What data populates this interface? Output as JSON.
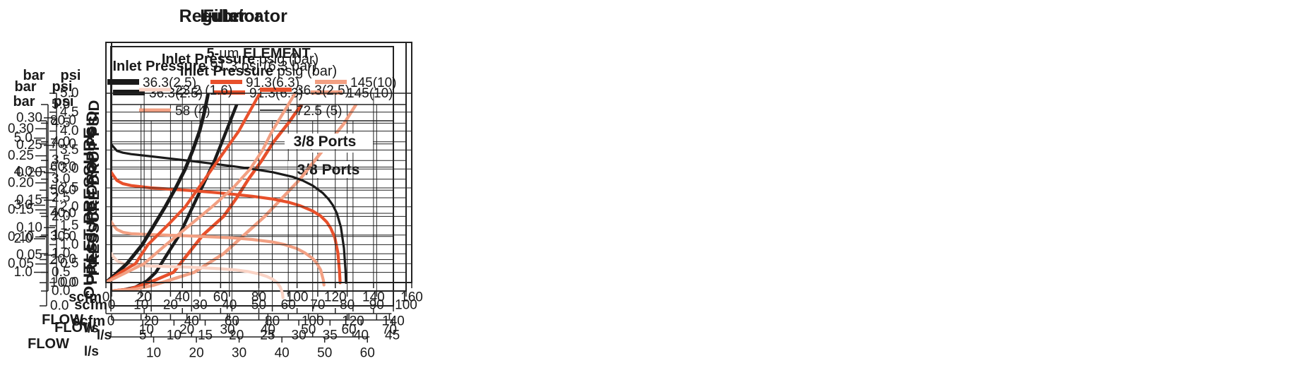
{
  "colors": {
    "black": "#1a1a1a",
    "orange": "#e8502b",
    "salmon": "#f2a083",
    "pink": "#fad3c5",
    "grid": "#222222",
    "background": "#ffffff"
  },
  "flow_axis": {
    "label": "FLOW",
    "primary_unit": "scfm",
    "secondary_unit": "l/s",
    "scfm_per_ls": 2.11888
  },
  "pressure_axis": {
    "psi_per_bar": 14.5
  },
  "chart_data": [
    {
      "type": "line",
      "title": "Filter",
      "ports_annotation": "3/8 Ports",
      "legend": {
        "title_lines": [
          {
            "segments": [
              {
                "t": "5-",
                "b": true
              },
              {
                "t": "µm",
                "b": false
              },
              {
                "t": " ELEMENT",
                "b": true
              }
            ]
          },
          {
            "segments": [
              {
                "t": "Inlet Pressure",
                "b": true
              },
              {
                "t": " psig (bar)",
                "b": false
              }
            ]
          }
        ],
        "entries": [
          {
            "label": "36.3(2.5)",
            "color": "black"
          },
          {
            "label": "91.3(6.3)",
            "color": "orange"
          },
          {
            "label": "145(10)",
            "color": "salmon"
          }
        ]
      },
      "y_axis": {
        "left_unit": "bar",
        "right_unit": "psi",
        "title": "PRESSURE DROP PSID",
        "psi_max": 5,
        "psi_step": 0.5,
        "psi_decimals": 1,
        "bar_ticks": [
          0.05,
          0.1,
          0.15,
          0.2,
          0.25,
          0.3
        ],
        "bar_decimals": 2
      },
      "x_axis": {
        "scfm_max": 100,
        "scfm_step": 10,
        "ls_ticks": [
          5,
          10,
          15,
          20,
          25,
          30,
          35,
          40,
          45
        ]
      },
      "series": [
        {
          "name": "36.3(2.5)",
          "color": "black",
          "points": [
            [
              0,
              0
            ],
            [
              4,
              0.03
            ],
            [
              8,
              0.1
            ],
            [
              12,
              0.27
            ],
            [
              15,
              0.5
            ],
            [
              19,
              1
            ],
            [
              23,
              1.5
            ],
            [
              26,
              2
            ],
            [
              29,
              2.5
            ],
            [
              32,
              3
            ],
            [
              35,
              3.5
            ],
            [
              37.5,
              4
            ],
            [
              40,
              4.5
            ],
            [
              42.5,
              5
            ]
          ]
        },
        {
          "name": "91.3(6.3)",
          "color": "orange",
          "points": [
            [
              0,
              0
            ],
            [
              6,
              0.05
            ],
            [
              10,
              0.15
            ],
            [
              15,
              0.3
            ],
            [
              21,
              0.5
            ],
            [
              26,
              1
            ],
            [
              31,
              1.5
            ],
            [
              38,
              2
            ],
            [
              42.5,
              2.5
            ],
            [
              46.5,
              3
            ],
            [
              51,
              3.5
            ],
            [
              55,
              4
            ],
            [
              60,
              4.5
            ],
            [
              64.5,
              5
            ]
          ]
        },
        {
          "name": "145(10)",
          "color": "salmon",
          "points": [
            [
              0,
              0
            ],
            [
              8,
              0.05
            ],
            [
              14,
              0.15
            ],
            [
              20,
              0.3
            ],
            [
              28,
              0.5
            ],
            [
              38,
              1
            ],
            [
              45,
              1.5
            ],
            [
              52,
              2
            ],
            [
              58,
              2.5
            ],
            [
              64,
              3
            ],
            [
              69,
              3.5
            ],
            [
              74,
              4
            ],
            [
              79,
              4.5
            ],
            [
              83,
              5
            ]
          ]
        }
      ]
    },
    {
      "type": "line",
      "title": "Regulator",
      "ports_annotation": "3/8 Ports",
      "legend": {
        "title_lines": [
          {
            "segments": [
              {
                "t": "Inlet Pressure",
                "b": true
              },
              {
                "t": " 91.3 psi (6.3 bar)",
                "b": false
              }
            ]
          }
        ],
        "entries": [
          {
            "label": "23.2 (1.6)",
            "color": "pink"
          },
          {
            "label": "36.3(2.5)",
            "color": "orange"
          },
          {
            "label": "58 (4)",
            "color": "salmon"
          },
          {
            "label": "72.5 (5)",
            "color": "black"
          }
        ]
      },
      "y_axis": {
        "left_unit": "bar",
        "right_unit": "psi",
        "title": "OUTLET PRESSURE",
        "psi_max": 80,
        "psi_step": 10,
        "psi_decimals": 1,
        "bar_ticks": [
          1.0,
          2.0,
          3.0,
          4.0,
          5.0
        ],
        "bar_decimals": 1
      },
      "x_axis": {
        "scfm_max": 140,
        "scfm_step": 20,
        "ls_ticks": [
          10,
          20,
          30,
          40,
          50,
          60
        ]
      },
      "series": [
        {
          "name": "72.5 (5)",
          "color": "black",
          "points": [
            [
              0,
              70
            ],
            [
              1.5,
              68.5
            ],
            [
              3,
              67
            ],
            [
              6,
              66.2
            ],
            [
              10,
              65.6
            ],
            [
              20,
              64.6
            ],
            [
              30,
              63.6
            ],
            [
              40,
              62.6
            ],
            [
              50,
              61.5
            ],
            [
              60,
              60.4
            ],
            [
              70,
              59.2
            ],
            [
              80,
              57.8
            ],
            [
              90,
              55.8
            ],
            [
              95,
              54.2
            ],
            [
              100,
              52
            ],
            [
              105,
              48.8
            ],
            [
              108,
              46
            ],
            [
              110,
              43.5
            ],
            [
              112,
              40
            ],
            [
              114,
              34
            ],
            [
              115.5,
              25
            ],
            [
              116.3,
              15
            ],
            [
              116.5,
              10
            ]
          ]
        },
        {
          "name": "58 (4)",
          "color": "orange",
          "points": [
            [
              0,
              58
            ],
            [
              1.5,
              56
            ],
            [
              3,
              54.2
            ],
            [
              6,
              52.8
            ],
            [
              10,
              52
            ],
            [
              20,
              51
            ],
            [
              30,
              50.4
            ],
            [
              40,
              49.8
            ],
            [
              50,
              49.1
            ],
            [
              60,
              48.3
            ],
            [
              70,
              47.4
            ],
            [
              80,
              46.2
            ],
            [
              88,
              44.8
            ],
            [
              94,
              43.2
            ],
            [
              100,
              41
            ],
            [
              104,
              38.8
            ],
            [
              107,
              36.2
            ],
            [
              109,
              33.5
            ],
            [
              111,
              29.5
            ],
            [
              112.5,
              23
            ],
            [
              113.3,
              15
            ],
            [
              113.6,
              10
            ]
          ]
        },
        {
          "name": "36.3(2.5)",
          "color": "salmon",
          "points": [
            [
              0,
              36.5
            ],
            [
              1.5,
              34.5
            ],
            [
              3,
              33
            ],
            [
              6,
              31.8
            ],
            [
              10,
              31.2
            ],
            [
              20,
              30.8
            ],
            [
              40,
              30.2
            ],
            [
              60,
              29.4
            ],
            [
              70,
              28.7
            ],
            [
              80,
              27.6
            ],
            [
              86,
              26.5
            ],
            [
              92,
              24.8
            ],
            [
              96,
              23
            ],
            [
              100,
              20.5
            ],
            [
              102,
              18.5
            ],
            [
              104,
              15.5
            ],
            [
              105.3,
              11
            ],
            [
              105.6,
              9
            ]
          ]
        },
        {
          "name": "23.2 (1.6)",
          "color": "pink",
          "points": [
            [
              0,
              22.8
            ],
            [
              1.5,
              21
            ],
            [
              3,
              19.5
            ],
            [
              6,
              18.2
            ],
            [
              10,
              17.6
            ],
            [
              20,
              17.2
            ],
            [
              40,
              16.7
            ],
            [
              55,
              16
            ],
            [
              62,
              15.5
            ],
            [
              68,
              14.8
            ],
            [
              73,
              13.9
            ],
            [
              77,
              12.8
            ],
            [
              80,
              11.6
            ],
            [
              82.5,
              10
            ],
            [
              84,
              8
            ],
            [
              85,
              5.5
            ],
            [
              85.3,
              3.5
            ]
          ]
        }
      ]
    },
    {
      "type": "line",
      "title": "Lubricator",
      "ports_annotation": "3/8 Ports",
      "legend": {
        "title_lines": [
          {
            "segments": [
              {
                "t": "Inlet Pressure",
                "b": true
              },
              {
                "t": " psig (bar)",
                "b": false
              }
            ]
          }
        ],
        "entries": [
          {
            "label": "36.3(2.5)",
            "color": "black"
          },
          {
            "label": "91.3(6.3)",
            "color": "orange"
          },
          {
            "label": "145(10)",
            "color": "salmon"
          }
        ]
      },
      "y_axis": {
        "left_unit": "bar",
        "right_unit": "psi",
        "title": "PRESSURE DROP PSID",
        "psi_max": 5,
        "psi_step": 0.5,
        "psi_decimals": 1,
        "bar_ticks": [
          0.05,
          0.1,
          0.15,
          0.2,
          0.25,
          0.3
        ],
        "bar_decimals": 2
      },
      "x_axis": {
        "scfm_max": 160,
        "scfm_step": 20,
        "ls_ticks": [
          10,
          20,
          30,
          40,
          50,
          60,
          70
        ]
      },
      "series": [
        {
          "name": "36.3(2.5)",
          "color": "black",
          "points": [
            [
              0,
              0
            ],
            [
              5,
              0.22
            ],
            [
              11,
              0.5
            ],
            [
              19,
              1
            ],
            [
              25,
              1.5
            ],
            [
              31,
              2
            ],
            [
              36.5,
              2.5
            ],
            [
              41.5,
              3
            ],
            [
              45.5,
              3.5
            ],
            [
              49,
              4
            ],
            [
              51.5,
              4.5
            ],
            [
              53.5,
              5
            ]
          ]
        },
        {
          "name": "91.3(6.3)",
          "color": "orange",
          "points": [
            [
              0,
              0
            ],
            [
              8,
              0.28
            ],
            [
              15.5,
              0.5
            ],
            [
              22,
              1
            ],
            [
              28,
              1.3
            ],
            [
              33,
              1.55
            ],
            [
              41.5,
              2
            ],
            [
              48.5,
              2.5
            ],
            [
              55.5,
              3
            ],
            [
              62.5,
              3.5
            ],
            [
              69.5,
              4
            ],
            [
              75,
              4.5
            ],
            [
              80.5,
              5
            ]
          ]
        },
        {
          "name": "145(10)",
          "color": "salmon",
          "points": [
            [
              0,
              0
            ],
            [
              10,
              0.25
            ],
            [
              20,
              0.5
            ],
            [
              31.5,
              1
            ],
            [
              43.5,
              1.5
            ],
            [
              55.5,
              2
            ],
            [
              66.5,
              2.5
            ],
            [
              75.5,
              3
            ],
            [
              82,
              3.5
            ],
            [
              87,
              4
            ],
            [
              93,
              4.5
            ],
            [
              99,
              5
            ]
          ]
        }
      ]
    }
  ]
}
